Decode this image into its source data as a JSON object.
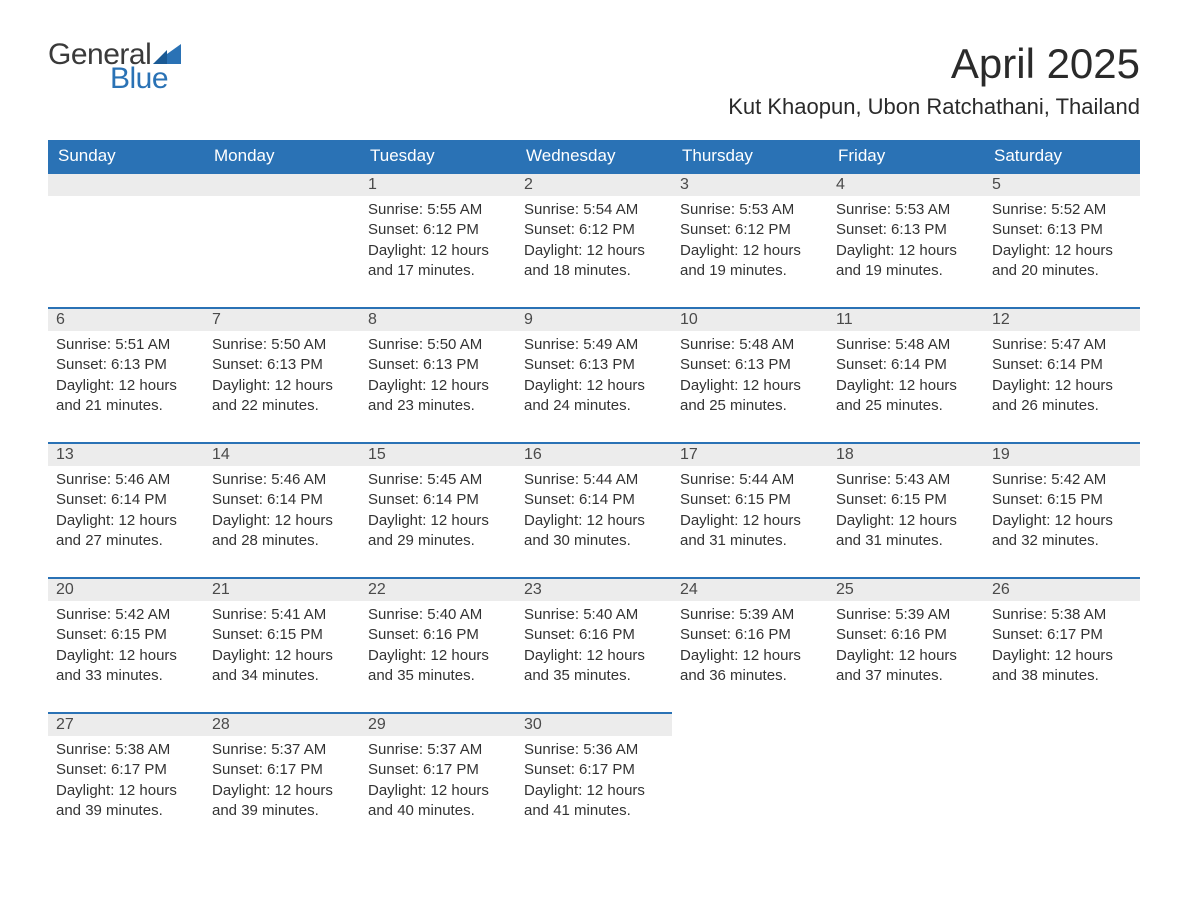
{
  "logo": {
    "general": "General",
    "blue": "Blue",
    "flag_color": "#2a72b5"
  },
  "header": {
    "month_title": "April 2025",
    "location": "Kut Khaopun, Ubon Ratchathani, Thailand"
  },
  "colors": {
    "header_bg": "#2a72b5",
    "header_text": "#ffffff",
    "daynum_bg": "#ececec",
    "daynum_border": "#2a72b5",
    "body_text": "#333333",
    "page_bg": "#ffffff"
  },
  "fonts": {
    "month_title_pt": 42,
    "location_pt": 22,
    "dayhead_pt": 17,
    "daynum_pt": 16,
    "body_pt": 15
  },
  "day_names": [
    "Sunday",
    "Monday",
    "Tuesday",
    "Wednesday",
    "Thursday",
    "Friday",
    "Saturday"
  ],
  "weeks": [
    [
      null,
      null,
      {
        "n": "1",
        "sr": "5:55 AM",
        "ss": "6:12 PM",
        "dl": "12 hours and 17 minutes."
      },
      {
        "n": "2",
        "sr": "5:54 AM",
        "ss": "6:12 PM",
        "dl": "12 hours and 18 minutes."
      },
      {
        "n": "3",
        "sr": "5:53 AM",
        "ss": "6:12 PM",
        "dl": "12 hours and 19 minutes."
      },
      {
        "n": "4",
        "sr": "5:53 AM",
        "ss": "6:13 PM",
        "dl": "12 hours and 19 minutes."
      },
      {
        "n": "5",
        "sr": "5:52 AM",
        "ss": "6:13 PM",
        "dl": "12 hours and 20 minutes."
      }
    ],
    [
      {
        "n": "6",
        "sr": "5:51 AM",
        "ss": "6:13 PM",
        "dl": "12 hours and 21 minutes."
      },
      {
        "n": "7",
        "sr": "5:50 AM",
        "ss": "6:13 PM",
        "dl": "12 hours and 22 minutes."
      },
      {
        "n": "8",
        "sr": "5:50 AM",
        "ss": "6:13 PM",
        "dl": "12 hours and 23 minutes."
      },
      {
        "n": "9",
        "sr": "5:49 AM",
        "ss": "6:13 PM",
        "dl": "12 hours and 24 minutes."
      },
      {
        "n": "10",
        "sr": "5:48 AM",
        "ss": "6:13 PM",
        "dl": "12 hours and 25 minutes."
      },
      {
        "n": "11",
        "sr": "5:48 AM",
        "ss": "6:14 PM",
        "dl": "12 hours and 25 minutes."
      },
      {
        "n": "12",
        "sr": "5:47 AM",
        "ss": "6:14 PM",
        "dl": "12 hours and 26 minutes."
      }
    ],
    [
      {
        "n": "13",
        "sr": "5:46 AM",
        "ss": "6:14 PM",
        "dl": "12 hours and 27 minutes."
      },
      {
        "n": "14",
        "sr": "5:46 AM",
        "ss": "6:14 PM",
        "dl": "12 hours and 28 minutes."
      },
      {
        "n": "15",
        "sr": "5:45 AM",
        "ss": "6:14 PM",
        "dl": "12 hours and 29 minutes."
      },
      {
        "n": "16",
        "sr": "5:44 AM",
        "ss": "6:14 PM",
        "dl": "12 hours and 30 minutes."
      },
      {
        "n": "17",
        "sr": "5:44 AM",
        "ss": "6:15 PM",
        "dl": "12 hours and 31 minutes."
      },
      {
        "n": "18",
        "sr": "5:43 AM",
        "ss": "6:15 PM",
        "dl": "12 hours and 31 minutes."
      },
      {
        "n": "19",
        "sr": "5:42 AM",
        "ss": "6:15 PM",
        "dl": "12 hours and 32 minutes."
      }
    ],
    [
      {
        "n": "20",
        "sr": "5:42 AM",
        "ss": "6:15 PM",
        "dl": "12 hours and 33 minutes."
      },
      {
        "n": "21",
        "sr": "5:41 AM",
        "ss": "6:15 PM",
        "dl": "12 hours and 34 minutes."
      },
      {
        "n": "22",
        "sr": "5:40 AM",
        "ss": "6:16 PM",
        "dl": "12 hours and 35 minutes."
      },
      {
        "n": "23",
        "sr": "5:40 AM",
        "ss": "6:16 PM",
        "dl": "12 hours and 35 minutes."
      },
      {
        "n": "24",
        "sr": "5:39 AM",
        "ss": "6:16 PM",
        "dl": "12 hours and 36 minutes."
      },
      {
        "n": "25",
        "sr": "5:39 AM",
        "ss": "6:16 PM",
        "dl": "12 hours and 37 minutes."
      },
      {
        "n": "26",
        "sr": "5:38 AM",
        "ss": "6:17 PM",
        "dl": "12 hours and 38 minutes."
      }
    ],
    [
      {
        "n": "27",
        "sr": "5:38 AM",
        "ss": "6:17 PM",
        "dl": "12 hours and 39 minutes."
      },
      {
        "n": "28",
        "sr": "5:37 AM",
        "ss": "6:17 PM",
        "dl": "12 hours and 39 minutes."
      },
      {
        "n": "29",
        "sr": "5:37 AM",
        "ss": "6:17 PM",
        "dl": "12 hours and 40 minutes."
      },
      {
        "n": "30",
        "sr": "5:36 AM",
        "ss": "6:17 PM",
        "dl": "12 hours and 41 minutes."
      },
      null,
      null,
      null
    ]
  ],
  "labels": {
    "sunrise": "Sunrise:",
    "sunset": "Sunset:",
    "daylight": "Daylight:"
  }
}
